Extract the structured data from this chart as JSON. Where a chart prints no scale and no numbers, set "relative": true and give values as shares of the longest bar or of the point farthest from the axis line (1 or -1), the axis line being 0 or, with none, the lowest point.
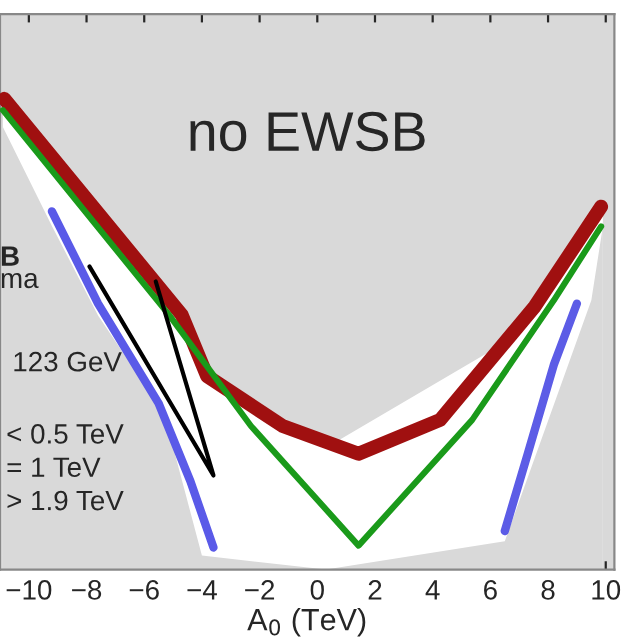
{
  "chart_data": {
    "type": "line",
    "relative": true,
    "xlabel": "A$_{0}$ (TeV)",
    "xlim": [
      -11,
      10.3
    ],
    "xticks": [
      {
        "value": -10,
        "label": "−10"
      },
      {
        "value": -8,
        "label": "−8"
      },
      {
        "value": -6,
        "label": "−6"
      },
      {
        "value": -4,
        "label": "−4"
      },
      {
        "value": -2,
        "label": "−2"
      },
      0,
      2,
      4,
      6,
      8,
      10
    ],
    "grid": false,
    "legend": false,
    "tick_labels": "x",
    "annotations": [
      "no EWSB",
      "B",
      "ma",
      "123 GeV",
      "< 0.5 TeV",
      "= 1 TeV",
      "> 1.9 TeV"
    ],
    "series": [
      {
        "type": "area",
        "color": "#ffffff",
        "x": [
          -10.9,
          -9.2,
          -7.6,
          -5.3,
          -4.0,
          0.3,
          6.5,
          9.5,
          9.9
        ],
        "values": [
          0.99,
          0.859,
          0.729,
          0.6,
          0.435,
          0.259,
          0.482,
          0.741,
          0.776
        ]
      },
      {
        "type": "area",
        "color": "#d9d9d9",
        "x": [
          -10.9,
          -9.2,
          -7.6,
          -5.3,
          -4.0,
          0.3,
          6.5,
          9.5,
          9.9
        ],
        "values": [
          0.94,
          0.73,
          0.54,
          0.33,
          0.03,
          0,
          0.06,
          0.572,
          0.729
        ]
      },
      {
        "color": "#a01010",
        "x": [
          -10.85,
          -4.7,
          -3.82,
          -1.2,
          1.43,
          4.26,
          7.54,
          9.84
        ],
        "values": [
          1.0,
          0.541,
          0.411,
          0.305,
          0.246,
          0.318,
          0.559,
          0.771
        ]
      },
      {
        "color": "#1a9a1a",
        "x": [
          -10.9,
          -5.14,
          -2.3,
          1.43,
          5.37,
          8.2,
          9.84
        ],
        "values": [
          0.976,
          0.541,
          0.305,
          0.051,
          0.318,
          0.572,
          0.729
        ]
      },
      {
        "color": "#5a5ae8",
        "x": [
          -9.2,
          -7.6,
          -5.5,
          -4.4,
          -3.6
        ],
        "values": [
          0.761,
          0.565,
          0.353,
          0.188,
          0.047
        ]
      },
      {
        "color": "#5c5ce6",
        "x": [
          6.5,
          7.3,
          8.2,
          9.0
        ],
        "values": [
          0.082,
          0.247,
          0.435,
          0.565
        ]
      },
      {
        "color": "#000000",
        "x": [
          -7.9,
          -3.6,
          -5.6
        ],
        "values": [
          0.644,
          0.2,
          0.612
        ]
      }
    ]
  }
}
